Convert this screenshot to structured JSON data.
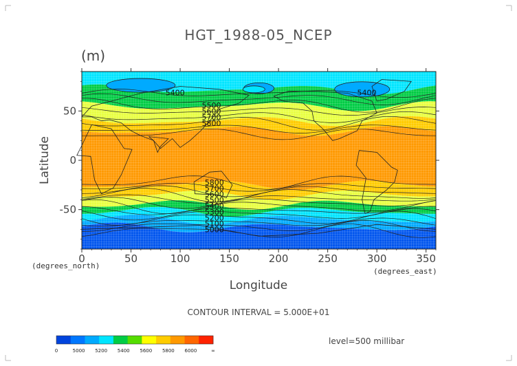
{
  "chart_data": {
    "type": "heatmap",
    "title": "HGT_1988-05_NCEP",
    "units": "(m)",
    "xlabel": "Longitude",
    "ylabel": "Latitude",
    "x_ticks": [
      0,
      50,
      100,
      150,
      200,
      250,
      300,
      350
    ],
    "y_ticks": [
      50,
      0,
      -50
    ],
    "xlim": [
      0,
      360
    ],
    "ylim": [
      -90,
      90
    ],
    "x_unit_note": "(degrees_east)",
    "y_unit_note": "(degrees_north)",
    "contour_interval_text": "CONTOUR INTERVAL = 5.000E+01",
    "level_text": "level=500 millibar",
    "zonal_bands": [
      {
        "lat_top": 90,
        "lat_bottom": 72,
        "fill": "#00e5ff"
      },
      {
        "lat_top": 72,
        "lat_bottom": 55,
        "fill": "#00cc44"
      },
      {
        "lat_top": 55,
        "lat_bottom": 40,
        "fill": "#e8ff40"
      },
      {
        "lat_top": 40,
        "lat_bottom": 30,
        "fill": "#ffcc00"
      },
      {
        "lat_top": 30,
        "lat_bottom": -25,
        "fill": "#ff9900"
      },
      {
        "lat_top": -25,
        "lat_bottom": -35,
        "fill": "#ffcc00"
      },
      {
        "lat_top": -35,
        "lat_bottom": -45,
        "fill": "#e8ff40"
      },
      {
        "lat_top": -45,
        "lat_bottom": -52,
        "fill": "#00cc44"
      },
      {
        "lat_top": -52,
        "lat_bottom": -60,
        "fill": "#00e5ff"
      },
      {
        "lat_top": -60,
        "lat_bottom": -68,
        "fill": "#00aaff"
      },
      {
        "lat_top": -68,
        "lat_bottom": -90,
        "fill": "#0055ee"
      }
    ],
    "contour_labels": [
      {
        "text": "5400",
        "lon": 85,
        "lat": 66
      },
      {
        "text": "5500",
        "lon": 122,
        "lat": 53
      },
      {
        "text": "5600",
        "lon": 122,
        "lat": 47
      },
      {
        "text": "5700",
        "lon": 122,
        "lat": 41
      },
      {
        "text": "5800",
        "lon": 122,
        "lat": 35
      },
      {
        "text": "5400",
        "lon": 280,
        "lat": 66
      },
      {
        "text": "5800",
        "lon": 125,
        "lat": -25
      },
      {
        "text": "5700",
        "lon": 125,
        "lat": -31
      },
      {
        "text": "5600",
        "lon": 125,
        "lat": -37
      },
      {
        "text": "5500",
        "lon": 125,
        "lat": -43
      },
      {
        "text": "5400",
        "lon": 125,
        "lat": -49
      },
      {
        "text": "5300",
        "lon": 125,
        "lat": -55
      },
      {
        "text": "5200",
        "lon": 125,
        "lat": -61
      },
      {
        "text": "5100",
        "lon": 125,
        "lat": -67
      },
      {
        "text": "5000",
        "lon": 125,
        "lat": -73
      }
    ],
    "colorbar": {
      "colors": [
        "#0044dd",
        "#0077ff",
        "#00aaff",
        "#00e5ff",
        "#00cc44",
        "#55dd00",
        "#ffff00",
        "#ffcc00",
        "#ff9900",
        "#ff6600",
        "#ff2200"
      ],
      "labels": [
        "0",
        "5000",
        "5200",
        "5400",
        "5600",
        "5800",
        "6000",
        "∞"
      ]
    }
  }
}
